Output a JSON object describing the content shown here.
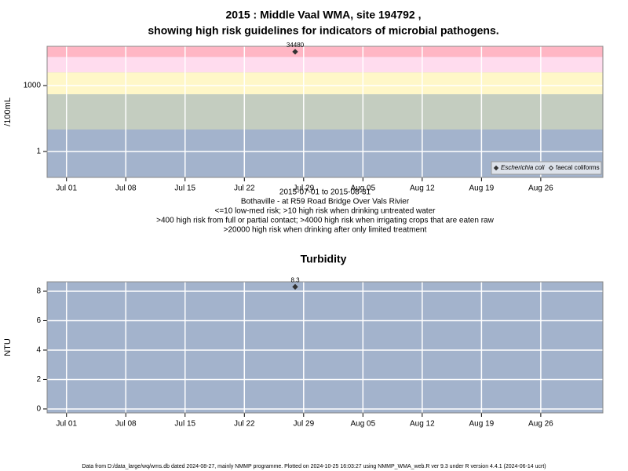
{
  "chart_data": [
    {
      "type": "scatter",
      "title": [
        "2015 : Middle Vaal WMA, site 194792 ,",
        "showing high risk guidelines for indicators of microbial pathogens."
      ],
      "ylabel": "/100mL",
      "log": true,
      "xlim": [
        "2015-06-28T17:00",
        "2015-09-02T08:00"
      ],
      "xticks": [
        {
          "value": "2015-07-01",
          "label": "Jul 01"
        },
        {
          "value": "2015-07-08",
          "label": "Jul 08"
        },
        {
          "value": "2015-07-15",
          "label": "Jul 15"
        },
        {
          "value": "2015-07-22",
          "label": "Jul 22"
        },
        {
          "value": "2015-07-29",
          "label": "Jul 29"
        },
        {
          "value": "2015-08-05",
          "label": "Aug 05"
        },
        {
          "value": "2015-08-12",
          "label": "Aug 12"
        },
        {
          "value": "2015-08-19",
          "label": "Aug 19"
        },
        {
          "value": "2015-08-26",
          "label": "Aug 26"
        }
      ],
      "ylim": [
        0.066,
        61000
      ],
      "yticks": [
        1,
        1000
      ],
      "grid": true,
      "background": "#a3b3cc",
      "bands": {
        "thresholds": [
          10,
          400,
          4000,
          20000
        ],
        "colors": [
          "#a3b3cc",
          "#c4cdc0",
          "#fff7c8",
          "#ffdcee",
          "#ffb6c4"
        ]
      },
      "notes": [
        "2015-07-01 to 2015-08-31",
        "Bothaville - at R59 Road Bridge Over Vals Rivier",
        "<=10 low-med risk; >10 high risk when drinking untreated water",
        ">400 high risk from full or partial contact; >4000 high risk when irrigating crops that are eaten raw",
        ">20000 high risk when drinking after only limited treatment"
      ],
      "legend": "bottom right",
      "series": [
        {
          "name": "Escherichia coli",
          "color": "#333333",
          "filled": true,
          "x": [
            "2015-07-28"
          ],
          "values": [
            34480
          ]
        },
        {
          "name": "faecal coliforms",
          "color": "#333333",
          "filled": false,
          "x": [],
          "values": []
        }
      ]
    },
    {
      "type": "scatter",
      "title": [
        "Turbidity"
      ],
      "ylabel": "NTU",
      "log": false,
      "xlim": [
        "2015-06-28T17:00",
        "2015-09-02T08:00"
      ],
      "xticks": [
        {
          "value": "2015-07-01",
          "label": "Jul 01"
        },
        {
          "value": "2015-07-08",
          "label": "Jul 08"
        },
        {
          "value": "2015-07-15",
          "label": "Jul 15"
        },
        {
          "value": "2015-07-22",
          "label": "Jul 22"
        },
        {
          "value": "2015-07-29",
          "label": "Jul 29"
        },
        {
          "value": "2015-08-05",
          "label": "Aug 05"
        },
        {
          "value": "2015-08-12",
          "label": "Aug 12"
        },
        {
          "value": "2015-08-19",
          "label": "Aug 19"
        },
        {
          "value": "2015-08-26",
          "label": "Aug 26"
        }
      ],
      "ylim": [
        -0.27,
        8.64
      ],
      "yticks": [
        0,
        2,
        4,
        6,
        8
      ],
      "grid": true,
      "background": "#a3b3cc",
      "series": [
        {
          "name": "Turbidity",
          "color": "#333333",
          "filled": true,
          "x": [
            "2015-07-28"
          ],
          "values": [
            8.3
          ]
        }
      ]
    }
  ],
  "footer": "Data from D:/data_large/wq/wms.db dated 2024-08-27, mainly NMMP programme. Plotted on 2024-10-25 16:03:27 using NMMP_WMA_web.R ver 9.3 under R version 4.4.1 (2024-06-14 ucrt)"
}
